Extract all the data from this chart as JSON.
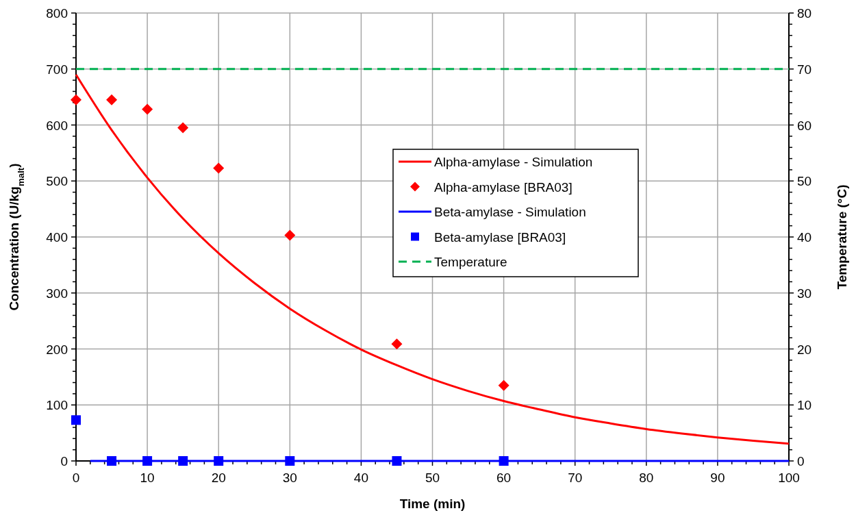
{
  "chart_data": {
    "type": "line",
    "xlabel": "Time (min)",
    "ylabel": "Concentration (U/kg$_{malt}$)",
    "y2label": "Temperature (°C)",
    "xlim": [
      0,
      100
    ],
    "ylim": [
      0,
      800
    ],
    "y2lim": [
      0,
      80
    ],
    "grid": true,
    "legend": "right",
    "xticks": [
      0,
      {
        "value": 2,
        "label": null
      },
      {
        "value": 4,
        "label": null
      },
      {
        "value": 6,
        "label": null
      },
      {
        "value": 8,
        "label": null
      },
      10,
      {
        "value": 12,
        "label": null
      },
      {
        "value": 14,
        "label": null
      },
      {
        "value": 16,
        "label": null
      },
      {
        "value": 18,
        "label": null
      },
      20,
      {
        "value": 22,
        "label": null
      },
      {
        "value": 24,
        "label": null
      },
      {
        "value": 26,
        "label": null
      },
      {
        "value": 28,
        "label": null
      },
      30,
      {
        "value": 32,
        "label": null
      },
      {
        "value": 34,
        "label": null
      },
      {
        "value": 36,
        "label": null
      },
      {
        "value": 38,
        "label": null
      },
      40,
      {
        "value": 42,
        "label": null
      },
      {
        "value": 44,
        "label": null
      },
      {
        "value": 46,
        "label": null
      },
      {
        "value": 48,
        "label": null
      },
      50,
      {
        "value": 52,
        "label": null
      },
      {
        "value": 54,
        "label": null
      },
      {
        "value": 56,
        "label": null
      },
      {
        "value": 58,
        "label": null
      },
      60,
      {
        "value": 62,
        "label": null
      },
      {
        "value": 64,
        "label": null
      },
      {
        "value": 66,
        "label": null
      },
      {
        "value": 68,
        "label": null
      },
      70,
      {
        "value": 72,
        "label": null
      },
      {
        "value": 74,
        "label": null
      },
      {
        "value": 76,
        "label": null
      },
      {
        "value": 78,
        "label": null
      },
      80,
      {
        "value": 82,
        "label": null
      },
      {
        "value": 84,
        "label": null
      },
      {
        "value": 86,
        "label": null
      },
      {
        "value": 88,
        "label": null
      },
      90,
      {
        "value": 92,
        "label": null
      },
      {
        "value": 94,
        "label": null
      },
      {
        "value": 96,
        "label": null
      },
      {
        "value": 98,
        "label": null
      },
      100
    ],
    "yticks": [
      0,
      {
        "value": 20,
        "label": null
      },
      {
        "value": 40,
        "label": null
      },
      {
        "value": 60,
        "label": null
      },
      {
        "value": 80,
        "label": null
      },
      100,
      {
        "value": 120,
        "label": null
      },
      {
        "value": 140,
        "label": null
      },
      {
        "value": 160,
        "label": null
      },
      {
        "value": 180,
        "label": null
      },
      200,
      {
        "value": 220,
        "label": null
      },
      {
        "value": 240,
        "label": null
      },
      {
        "value": 260,
        "label": null
      },
      {
        "value": 280,
        "label": null
      },
      300,
      {
        "value": 320,
        "label": null
      },
      {
        "value": 340,
        "label": null
      },
      {
        "value": 360,
        "label": null
      },
      {
        "value": 380,
        "label": null
      },
      400,
      {
        "value": 420,
        "label": null
      },
      {
        "value": 440,
        "label": null
      },
      {
        "value": 460,
        "label": null
      },
      {
        "value": 480,
        "label": null
      },
      500,
      {
        "value": 520,
        "label": null
      },
      {
        "value": 540,
        "label": null
      },
      {
        "value": 560,
        "label": null
      },
      {
        "value": 580,
        "label": null
      },
      600,
      {
        "value": 620,
        "label": null
      },
      {
        "value": 640,
        "label": null
      },
      {
        "value": 660,
        "label": null
      },
      {
        "value": 680,
        "label": null
      },
      700,
      {
        "value": 720,
        "label": null
      },
      {
        "value": 740,
        "label": null
      },
      {
        "value": 760,
        "label": null
      },
      {
        "value": 780,
        "label": null
      },
      800
    ],
    "y2ticks": [
      0,
      {
        "value": 2,
        "label": null
      },
      {
        "value": 4,
        "label": null
      },
      {
        "value": 6,
        "label": null
      },
      {
        "value": 8,
        "label": null
      },
      10,
      {
        "value": 12,
        "label": null
      },
      {
        "value": 14,
        "label": null
      },
      {
        "value": 16,
        "label": null
      },
      {
        "value": 18,
        "label": null
      },
      20,
      {
        "value": 22,
        "label": null
      },
      {
        "value": 24,
        "label": null
      },
      {
        "value": 26,
        "label": null
      },
      {
        "value": 28,
        "label": null
      },
      30,
      {
        "value": 32,
        "label": null
      },
      {
        "value": 34,
        "label": null
      },
      {
        "value": 36,
        "label": null
      },
      {
        "value": 38,
        "label": null
      },
      40,
      {
        "value": 42,
        "label": null
      },
      {
        "value": 44,
        "label": null
      },
      {
        "value": 46,
        "label": null
      },
      {
        "value": 48,
        "label": null
      },
      50,
      {
        "value": 52,
        "label": null
      },
      {
        "value": 54,
        "label": null
      },
      {
        "value": 56,
        "label": null
      },
      {
        "value": 58,
        "label": null
      },
      60,
      {
        "value": 62,
        "label": null
      },
      {
        "value": 64,
        "label": null
      },
      {
        "value": 66,
        "label": null
      },
      {
        "value": 68,
        "label": null
      },
      70,
      {
        "value": 72,
        "label": null
      },
      {
        "value": 74,
        "label": null
      },
      {
        "value": 76,
        "label": null
      },
      {
        "value": 78,
        "label": null
      },
      80
    ],
    "series": [
      {
        "name": "Alpha-amylase - Simulation",
        "color": "#ff0000",
        "marker": "none",
        "line_style": "solid",
        "x": [
          0,
          5,
          10,
          15,
          20,
          25,
          30,
          35,
          40,
          45,
          50,
          55,
          60,
          65,
          70,
          75,
          80,
          85,
          90,
          95,
          100
        ],
        "values": [
          690,
          591,
          506,
          433,
          371,
          318,
          272,
          233,
          199,
          171,
          146,
          125,
          107,
          92,
          78,
          67,
          57,
          49,
          42,
          36,
          31
        ]
      },
      {
        "name": "Alpha-amylase [BRA03]",
        "type": "scatter",
        "color": "#ff0000",
        "marker": "diamond",
        "x": [
          0,
          5,
          10,
          15,
          20,
          30,
          45,
          60
        ],
        "values": [
          645,
          645,
          628,
          595,
          523,
          403,
          209,
          135
        ]
      },
      {
        "name": "Beta-amylase - Simulation",
        "color": "#0000ff",
        "marker": "none",
        "line_style": "solid",
        "x": [
          2,
          100
        ],
        "values": [
          0,
          0
        ]
      },
      {
        "name": "Beta-amylase [BRA03]",
        "type": "scatter",
        "color": "#0000ff",
        "marker": "square",
        "x": [
          0,
          5,
          10,
          15,
          20,
          30,
          45,
          60
        ],
        "values": [
          73,
          0,
          0,
          0,
          0,
          0,
          0,
          0
        ]
      },
      {
        "name": "Temperature",
        "color": "#00b050",
        "marker": "none",
        "line_style": "dashed",
        "axis": "y2",
        "x": [
          0,
          100
        ],
        "values": [
          70,
          70
        ]
      }
    ]
  }
}
